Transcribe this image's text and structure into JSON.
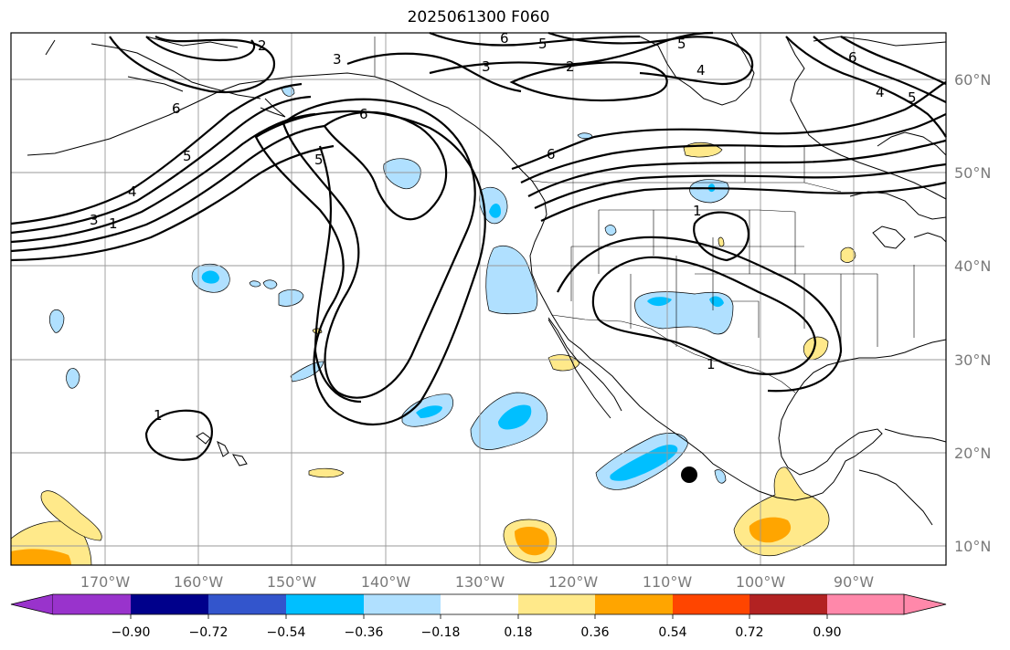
{
  "title": "2025061300 F060",
  "map": {
    "lon_labels": [
      "170°W",
      "160°W",
      "150°W",
      "140°W",
      "130°W",
      "120°W",
      "110°W",
      "100°W",
      "90°W"
    ],
    "lat_labels": [
      "60°N",
      "50°N",
      "40°N",
      "30°N",
      "20°N",
      "10°N"
    ],
    "contour_labels": [
      "2",
      "3",
      "6",
      "5",
      "6",
      "5",
      "3",
      "2",
      "4",
      "6",
      "4",
      "5",
      "6",
      "5",
      "4",
      "3",
      "1",
      "5",
      "6",
      "1",
      "1",
      "1"
    ],
    "marker": "filled-circle"
  },
  "colorbar": {
    "ticks": [
      "−0.90",
      "−0.72",
      "−0.54",
      "−0.36",
      "−0.18",
      "0.18",
      "0.36",
      "0.54",
      "0.72",
      "0.90"
    ],
    "colors": [
      "#9933cc",
      "#00008b",
      "#3355cc",
      "#00bfff",
      "#b0e0ff",
      "#ffffff",
      "#ffe98a",
      "#ffa500",
      "#ff4500",
      "#b22222",
      "#ff88aa"
    ]
  }
}
